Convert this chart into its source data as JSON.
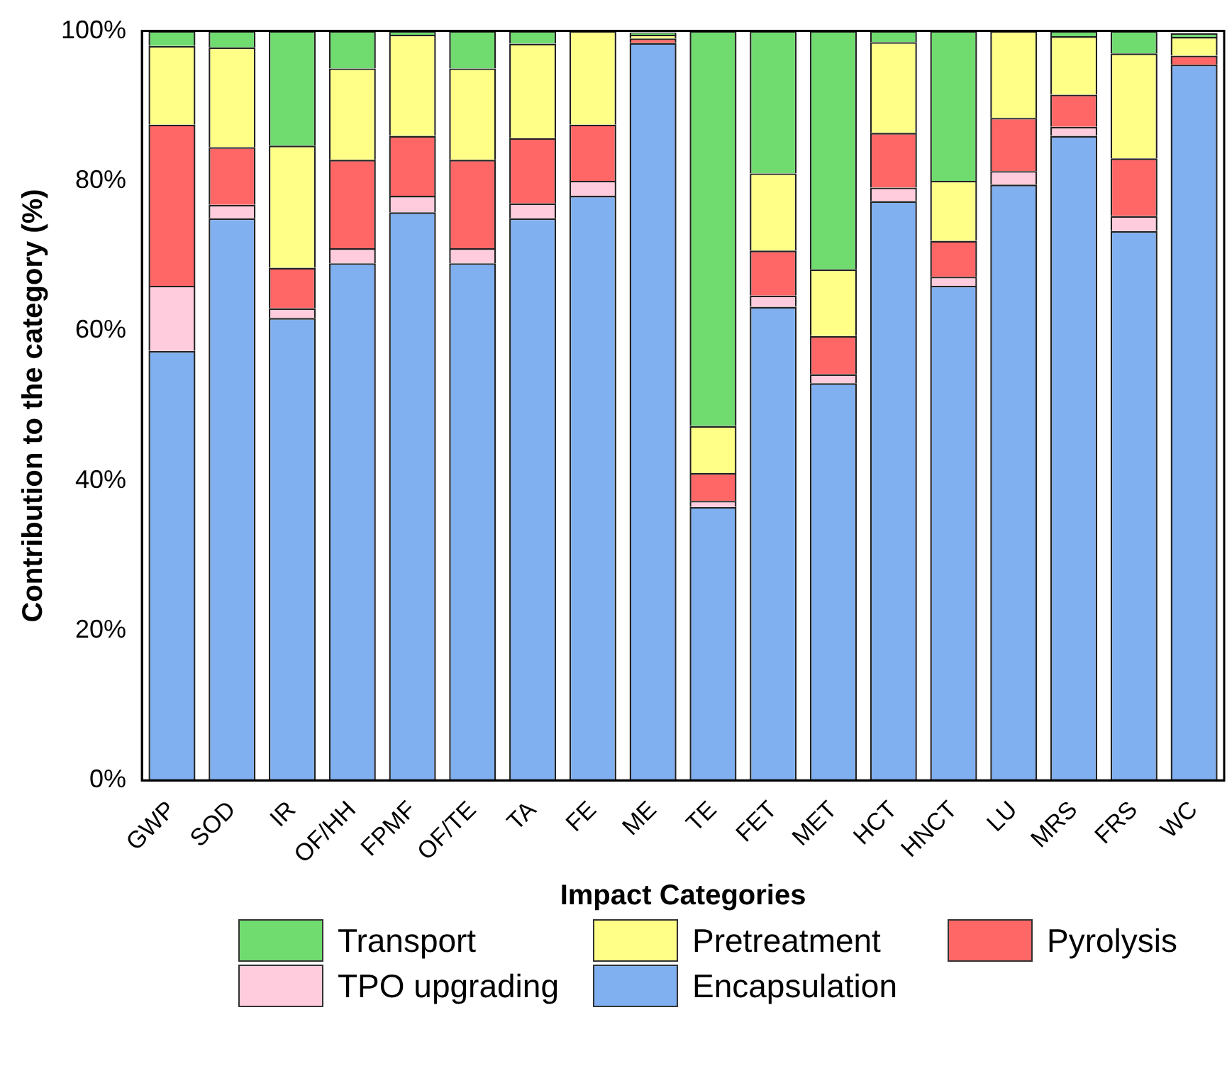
{
  "chart_data": {
    "type": "bar",
    "stacked": true,
    "xlabel": "Impact Categories",
    "ylabel": "Contribution to the category (%)",
    "categories": [
      "GWP",
      "SOD",
      "IR",
      "OF/HH",
      "FPMF",
      "OF/TE",
      "TA",
      "FE",
      "ME",
      "TE",
      "FET",
      "MET",
      "HCT",
      "HNCT",
      "LU",
      "MRS",
      "FRS",
      "WC"
    ],
    "ylim": [
      0,
      100
    ],
    "yticks": [
      {
        "value": 0,
        "label": "0%"
      },
      {
        "value": 20,
        "label": "20%"
      },
      {
        "value": 40,
        "label": "40%"
      },
      {
        "value": 60,
        "label": "60%"
      },
      {
        "value": 80,
        "label": "80%"
      },
      {
        "value": 100,
        "label": "100%"
      }
    ],
    "grid": false,
    "legend": "bottom",
    "series": [
      {
        "name": "Encapsulation",
        "color": "#80b0f0",
        "values": [
          57.3,
          75,
          61.7,
          69,
          75.8,
          69,
          75,
          78,
          98.4,
          36.5,
          63.2,
          53,
          77.3,
          66,
          79.5,
          86,
          73.3,
          95.5
        ]
      },
      {
        "name": "TPO upgrading",
        "color": "#ffccdd",
        "values": [
          8.7,
          1.8,
          1.3,
          2,
          2.2,
          2,
          2,
          2,
          null,
          0.8,
          1.5,
          1.2,
          1.8,
          1.2,
          1.8,
          1.2,
          2,
          null
        ]
      },
      {
        "name": "Pyrolysis",
        "color": "#ff6666",
        "values": [
          21.5,
          7.7,
          5.4,
          11.8,
          8,
          11.8,
          8.7,
          7.5,
          0.6,
          3.7,
          6,
          5.1,
          7.3,
          4.8,
          7.1,
          4.3,
          7.7,
          1.2
        ]
      },
      {
        "name": "Pretreatment",
        "color": "#ffff88",
        "values": [
          10.5,
          13.3,
          16.3,
          12.2,
          13.5,
          12.2,
          12.6,
          12.5,
          0.5,
          6.3,
          10.3,
          8.9,
          12.1,
          8,
          11.6,
          7.8,
          14,
          2.5
        ]
      },
      {
        "name": "Transport",
        "color": "#70dc70",
        "values": [
          2,
          2.2,
          15.3,
          5,
          0.5,
          5,
          1.7,
          0,
          0.3,
          52.7,
          19,
          31.8,
          1.5,
          20,
          0,
          0.7,
          3,
          0.5
        ]
      }
    ]
  }
}
